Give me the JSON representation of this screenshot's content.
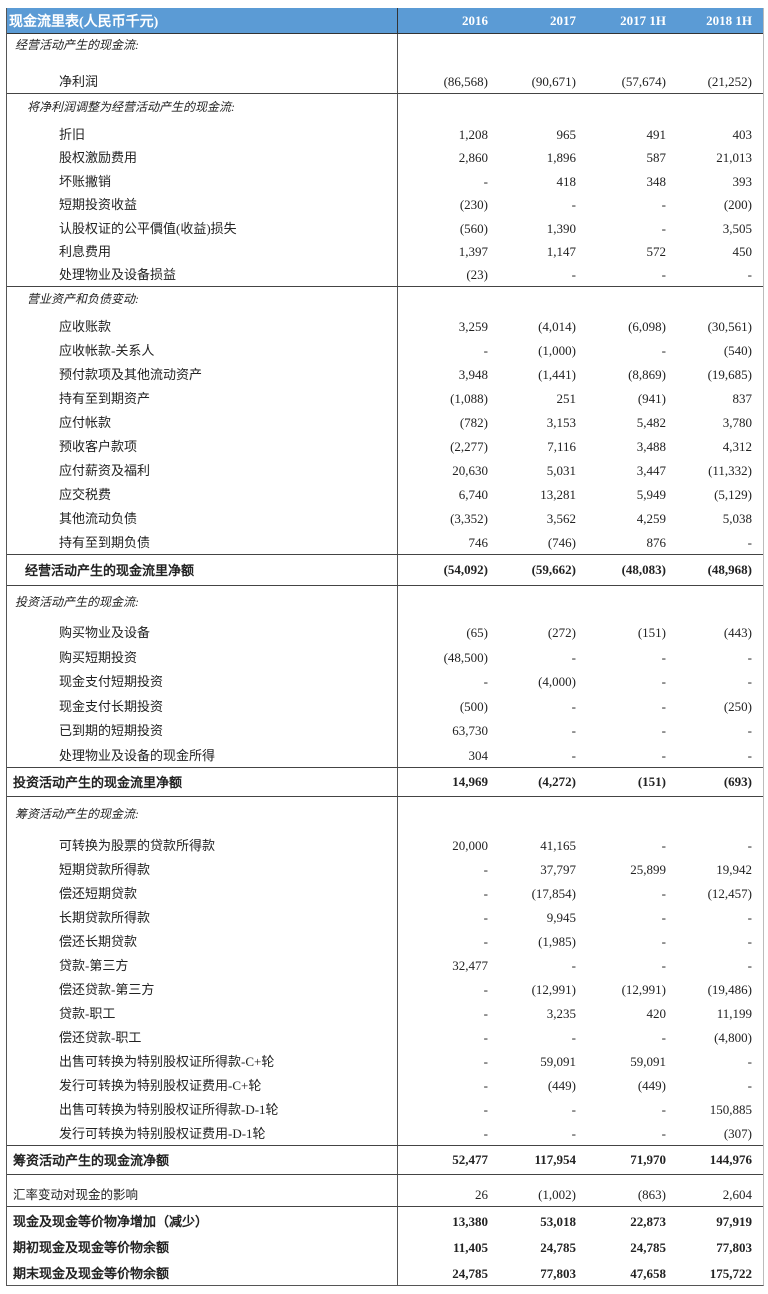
{
  "header": {
    "title": "现金流里表(人民币千元)",
    "columns": [
      "2016",
      "2017",
      "2017 1H",
      "2018 1H"
    ],
    "color": "#5b9bd5"
  },
  "rows": [
    {
      "type": "sec",
      "level": 1,
      "label": "经营活动产生的现金流:"
    },
    {
      "type": "item",
      "label": "净利润",
      "values": [
        "(86,568)",
        "(90,671)",
        "(57,674)",
        "(21,252)"
      ]
    },
    {
      "type": "sec",
      "level": 2,
      "label": "将净利润调整为经营活动产生的现金流:"
    },
    {
      "type": "item",
      "label": "折旧",
      "values": [
        "1,208",
        "965",
        "491",
        "403"
      ]
    },
    {
      "type": "item",
      "label": "股权激励费用",
      "values": [
        "2,860",
        "1,896",
        "587",
        "21,013"
      ]
    },
    {
      "type": "item",
      "label": "坏账撇销",
      "values": [
        "-",
        "418",
        "348",
        "393"
      ]
    },
    {
      "type": "item",
      "label": "短期投资收益",
      "values": [
        "(230)",
        "-",
        "-",
        "(200)"
      ]
    },
    {
      "type": "item",
      "label": "认股权证的公平價值(收益)损失",
      "values": [
        "(560)",
        "1,390",
        "-",
        "3,505"
      ]
    },
    {
      "type": "item",
      "label": "利息费用",
      "values": [
        "1,397",
        "1,147",
        "572",
        "450"
      ]
    },
    {
      "type": "item",
      "label": "处理物业及设备损益",
      "values": [
        "(23)",
        "-",
        "-",
        "-"
      ]
    },
    {
      "type": "sec",
      "level": 2,
      "label": "营业资产和负债变动:"
    },
    {
      "type": "item",
      "label": "应收账款",
      "values": [
        "3,259",
        "(4,014)",
        "(6,098)",
        "(30,561)"
      ]
    },
    {
      "type": "item",
      "label": "应收帐款-关系人",
      "values": [
        "-",
        "(1,000)",
        "-",
        "(540)"
      ]
    },
    {
      "type": "item",
      "label": "预付款项及其他流动资产",
      "values": [
        "3,948",
        "(1,441)",
        "(8,869)",
        "(19,685)"
      ]
    },
    {
      "type": "item",
      "label": "持有至到期资产",
      "values": [
        "(1,088)",
        "251",
        "(941)",
        "837"
      ]
    },
    {
      "type": "item",
      "label": "应付帐款",
      "values": [
        "(782)",
        "3,153",
        "5,482",
        "3,780"
      ]
    },
    {
      "type": "item",
      "label": "预收客户款项",
      "values": [
        "(2,277)",
        "7,116",
        "3,488",
        "4,312"
      ]
    },
    {
      "type": "item",
      "label": "应付薪资及福利",
      "values": [
        "20,630",
        "5,031",
        "3,447",
        "(11,332)"
      ]
    },
    {
      "type": "item",
      "label": "应交税费",
      "values": [
        "6,740",
        "13,281",
        "5,949",
        "(5,129)"
      ]
    },
    {
      "type": "item",
      "label": "其他流动负债",
      "values": [
        "(3,352)",
        "3,562",
        "4,259",
        "5,038"
      ]
    },
    {
      "type": "item",
      "label": "持有至到期负债",
      "values": [
        "746",
        "(746)",
        "876",
        "-"
      ]
    },
    {
      "type": "tot",
      "label": "经营活动产生的现金流里净额",
      "values": [
        "(54,092)",
        "(59,662)",
        "(48,083)",
        "(48,968)"
      ]
    },
    {
      "type": "sec",
      "level": 1,
      "label": "投资活动产生的现金流:"
    },
    {
      "type": "item",
      "label": "购买物业及设备",
      "values": [
        "(65)",
        "(272)",
        "(151)",
        "(443)"
      ]
    },
    {
      "type": "item",
      "label": "购买短期投资",
      "values": [
        "(48,500)",
        "-",
        "-",
        "-"
      ]
    },
    {
      "type": "item",
      "label": "现金支付短期投资",
      "values": [
        "-",
        "(4,000)",
        "-",
        "-"
      ]
    },
    {
      "type": "item",
      "label": "现金支付长期投资",
      "values": [
        "(500)",
        "-",
        "-",
        "(250)"
      ]
    },
    {
      "type": "item",
      "label": "已到期的短期投资",
      "values": [
        "63,730",
        "-",
        "-",
        "-"
      ]
    },
    {
      "type": "item",
      "label": "处理物业及设备的现金所得",
      "values": [
        "304",
        "-",
        "-",
        "-"
      ]
    },
    {
      "type": "tot",
      "label": "投资活动产生的现金流里净额",
      "values": [
        "14,969",
        "(4,272)",
        "(151)",
        "(693)"
      ]
    },
    {
      "type": "sec",
      "level": 1,
      "label": "筹资活动产生的现金流:"
    },
    {
      "type": "item",
      "label": "可转换为股票的贷款所得款",
      "values": [
        "20,000",
        "41,165",
        "-",
        "-"
      ]
    },
    {
      "type": "item",
      "label": "短期贷款所得款",
      "values": [
        "-",
        "37,797",
        "25,899",
        "19,942"
      ]
    },
    {
      "type": "item",
      "label": "偿还短期贷款",
      "values": [
        "-",
        "(17,854)",
        "-",
        "(12,457)"
      ]
    },
    {
      "type": "item",
      "label": "长期贷款所得款",
      "values": [
        "-",
        "9,945",
        "-",
        "-"
      ]
    },
    {
      "type": "item",
      "label": "偿还长期贷款",
      "values": [
        "-",
        "(1,985)",
        "-",
        "-"
      ]
    },
    {
      "type": "item",
      "label": "贷款-第三方",
      "values": [
        "32,477",
        "-",
        "-",
        "-"
      ]
    },
    {
      "type": "item",
      "label": "偿还贷款-第三方",
      "values": [
        "-",
        "(12,991)",
        "(12,991)",
        "(19,486)"
      ]
    },
    {
      "type": "item",
      "label": "贷款-职工",
      "values": [
        "-",
        "3,235",
        "420",
        "11,199"
      ]
    },
    {
      "type": "item",
      "label": "偿还贷款-职工",
      "values": [
        "-",
        "-",
        "-",
        "(4,800)"
      ]
    },
    {
      "type": "item",
      "label": "出售可转换为特别股权证所得款-C+轮",
      "values": [
        "-",
        "59,091",
        "59,091",
        "-"
      ]
    },
    {
      "type": "item",
      "label": "发行可转换为特别股权证费用-C+轮",
      "values": [
        "-",
        "(449)",
        "(449)",
        "-"
      ]
    },
    {
      "type": "item",
      "label": "出售可转换为特别股权证所得款-D-1轮",
      "values": [
        "-",
        "-",
        "-",
        "150,885"
      ]
    },
    {
      "type": "item",
      "label": "发行可转换为特别股权证费用-D-1轮",
      "values": [
        "-",
        "-",
        "-",
        "(307)"
      ]
    },
    {
      "type": "tot",
      "label": "筹资活动产生的现金流净额",
      "values": [
        "52,477",
        "117,954",
        "71,970",
        "144,976"
      ]
    },
    {
      "type": "plain",
      "label": "汇率变动对现金的影响",
      "values": [
        "26",
        "(1,002)",
        "(863)",
        "2,604"
      ]
    },
    {
      "type": "fin",
      "label": "现金及现金等价物净增加（减少）",
      "values": [
        "13,380",
        "53,018",
        "22,873",
        "97,919"
      ]
    },
    {
      "type": "fin",
      "label": "期初现金及现金等价物余额",
      "values": [
        "11,405",
        "24,785",
        "24,785",
        "77,803"
      ]
    },
    {
      "type": "fin",
      "label": "期末现金及现金等价物余额",
      "values": [
        "24,785",
        "77,803",
        "47,658",
        "175,722"
      ]
    }
  ]
}
